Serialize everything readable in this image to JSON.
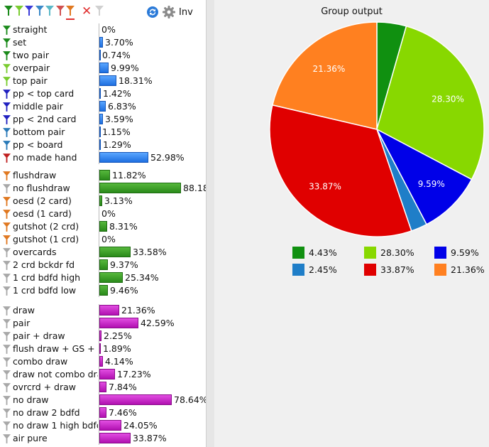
{
  "toolbar": {
    "filters": [
      {
        "name": "filter-1-icon",
        "color": "#1a8a1a"
      },
      {
        "name": "filter-2-icon",
        "color": "#7acc30"
      },
      {
        "name": "filter-3-icon",
        "color": "#3a3ad8"
      },
      {
        "name": "filter-4-icon",
        "color": "#3a88c8"
      },
      {
        "name": "filter-5-icon",
        "color": "#5ab8c8"
      },
      {
        "name": "filter-6-icon",
        "color": "#d05050"
      },
      {
        "name": "filter-7-icon",
        "color": "#e07820"
      }
    ],
    "inv_label": "Inv"
  },
  "groups": [
    {
      "bar_color": "blue",
      "rows": [
        {
          "label": "straight",
          "value": "0%",
          "pct": 0,
          "icon_color": "#1a8a1a"
        },
        {
          "label": "set",
          "value": "3.70%",
          "pct": 3.7,
          "icon_color": "#1a8a1a"
        },
        {
          "label": "two pair",
          "value": "0.74%",
          "pct": 0.74,
          "icon_color": "#1a8a1a"
        },
        {
          "label": "overpair",
          "value": "9.99%",
          "pct": 9.99,
          "icon_color": "#7acc30"
        },
        {
          "label": "top pair",
          "value": "18.31%",
          "pct": 18.31,
          "icon_color": "#7acc30"
        },
        {
          "label": "pp < top card",
          "value": "1.42%",
          "pct": 1.42,
          "icon_color": "#2020c0"
        },
        {
          "label": "middle pair",
          "value": "6.83%",
          "pct": 6.83,
          "icon_color": "#2020c0"
        },
        {
          "label": "pp < 2nd card",
          "value": "3.59%",
          "pct": 3.59,
          "icon_color": "#2020c0"
        },
        {
          "label": "bottom pair",
          "value": "1.15%",
          "pct": 1.15,
          "icon_color": "#2a7ab8"
        },
        {
          "label": "pp < board",
          "value": "1.29%",
          "pct": 1.29,
          "icon_color": "#2a7ab8"
        },
        {
          "label": "no made hand",
          "value": "52.98%",
          "pct": 52.98,
          "icon_color": "#c02020"
        }
      ]
    },
    {
      "bar_color": "green",
      "rows": [
        {
          "label": "flushdraw",
          "value": "11.82%",
          "pct": 11.82,
          "icon_color": "#e07820"
        },
        {
          "label": "no flushdraw",
          "value": "88.18%",
          "pct": 88.18,
          "icon_color": "#a8a8a8"
        },
        {
          "label": "oesd (2 card)",
          "value": "3.13%",
          "pct": 3.13,
          "icon_color": "#e07820"
        },
        {
          "label": "oesd (1 card)",
          "value": "0%",
          "pct": 0,
          "icon_color": "#e07820"
        },
        {
          "label": "gutshot (2 crd)",
          "value": "8.31%",
          "pct": 8.31,
          "icon_color": "#e07820"
        },
        {
          "label": "gutshot (1 crd)",
          "value": "0%",
          "pct": 0,
          "icon_color": "#e07820"
        },
        {
          "label": "overcards",
          "value": "33.58%",
          "pct": 33.58,
          "icon_color": "#a8a8a8"
        },
        {
          "label": "2 crd bckdr fd",
          "value": "9.37%",
          "pct": 9.37,
          "icon_color": "#a8a8a8"
        },
        {
          "label": "1 crd bdfd high",
          "value": "25.34%",
          "pct": 25.34,
          "icon_color": "#a8a8a8"
        },
        {
          "label": "1 crd bdfd low",
          "value": "9.46%",
          "pct": 9.46,
          "icon_color": "#a8a8a8"
        }
      ]
    },
    {
      "bar_color": "mag",
      "rows": [
        {
          "label": "draw",
          "value": "21.36%",
          "pct": 21.36,
          "icon_color": "#a8a8a8"
        },
        {
          "label": "pair",
          "value": "42.59%",
          "pct": 42.59,
          "icon_color": "#a8a8a8"
        },
        {
          "label": "pair + draw",
          "value": "2.25%",
          "pct": 2.25,
          "icon_color": "#a8a8a8"
        },
        {
          "label": "flush draw + GS +",
          "value": "1.89%",
          "pct": 1.89,
          "icon_color": "#a8a8a8"
        },
        {
          "label": "combo draw",
          "value": "4.14%",
          "pct": 4.14,
          "icon_color": "#a8a8a8"
        },
        {
          "label": "draw not combo dra",
          "value": "17.23%",
          "pct": 17.23,
          "icon_color": "#a8a8a8"
        },
        {
          "label": "ovrcrd + draw",
          "value": "7.84%",
          "pct": 7.84,
          "icon_color": "#a8a8a8"
        },
        {
          "label": "no draw",
          "value": "78.64%",
          "pct": 78.64,
          "icon_color": "#a8a8a8"
        },
        {
          "label": "no draw 2 bdfd",
          "value": "7.46%",
          "pct": 7.46,
          "icon_color": "#a8a8a8"
        },
        {
          "label": "no draw 1 high bdfd",
          "value": "24.05%",
          "pct": 24.05,
          "icon_color": "#a8a8a8"
        },
        {
          "label": "air pure",
          "value": "33.87%",
          "pct": 33.87,
          "icon_color": "#a8a8a8"
        }
      ]
    }
  ],
  "chart_data": {
    "type": "pie",
    "title": "Group output",
    "slices": [
      {
        "label": "4.43%",
        "value": 4.43,
        "color": "#109010"
      },
      {
        "label": "28.30%",
        "value": 28.3,
        "color": "#88d800"
      },
      {
        "label": "9.59%",
        "value": 9.59,
        "color": "#0000e8"
      },
      {
        "label": "2.45%",
        "value": 2.45,
        "color": "#1f7ec8"
      },
      {
        "label": "33.87%",
        "value": 33.87,
        "color": "#e00000"
      },
      {
        "label": "21.36%",
        "value": 21.36,
        "color": "#ff8020"
      }
    ],
    "legend_placement": "bottom"
  }
}
